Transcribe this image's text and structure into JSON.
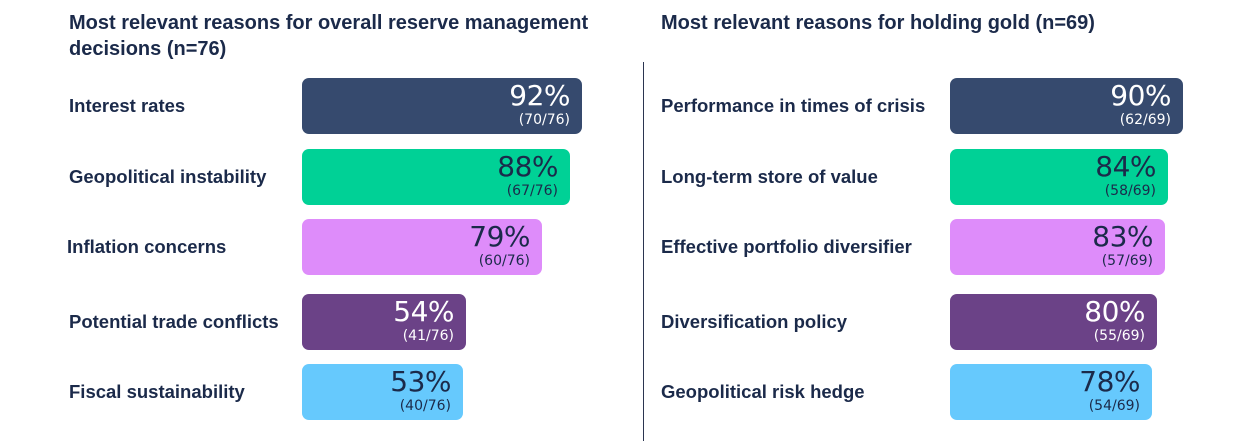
{
  "chart_data": [
    {
      "type": "bar",
      "orientation": "horizontal",
      "title": "Most relevant reasons for overall reserve management decisions (n=76)",
      "categories": [
        "Interest rates",
        "Geopolitical instability",
        "Inflation concerns",
        "Potential trade conflicts",
        "Fiscal sustainability"
      ],
      "values": [
        92,
        88,
        79,
        54,
        53
      ],
      "value_labels": [
        "92%",
        "88%",
        "79%",
        "54%",
        "53%"
      ],
      "count_labels": [
        "(70/76)",
        "(67/76)",
        "(60/76)",
        "(41/76)",
        "(40/76)"
      ],
      "colors": [
        "#364a6e",
        "#00d196",
        "#de8cfa",
        "#6b4287",
        "#66c9fd"
      ],
      "text_colors": [
        "#ffffff",
        "#1b2a4a",
        "#1b2a4a",
        "#ffffff",
        "#1b2a4a"
      ],
      "xlim": [
        0,
        100
      ],
      "unit": "%"
    },
    {
      "type": "bar",
      "orientation": "horizontal",
      "title": "Most relevant reasons for holding gold (n=69)",
      "categories": [
        "Performance in times of crisis",
        "Long-term store of value",
        "Effective portfolio diversifier",
        "Diversification policy",
        "Geopolitical risk hedge"
      ],
      "values": [
        90,
        84,
        83,
        80,
        78
      ],
      "value_labels": [
        "90%",
        "84%",
        "83%",
        "80%",
        "78%"
      ],
      "count_labels": [
        "(62/69)",
        "(58/69)",
        "(57/69)",
        "(55/69)",
        "(54/69)"
      ],
      "colors": [
        "#364a6e",
        "#00d196",
        "#de8cfa",
        "#6b4287",
        "#66c9fd"
      ],
      "text_colors": [
        "#ffffff",
        "#1b2a4a",
        "#1b2a4a",
        "#ffffff",
        "#1b2a4a"
      ],
      "xlim": [
        0,
        100
      ],
      "unit": "%"
    }
  ]
}
